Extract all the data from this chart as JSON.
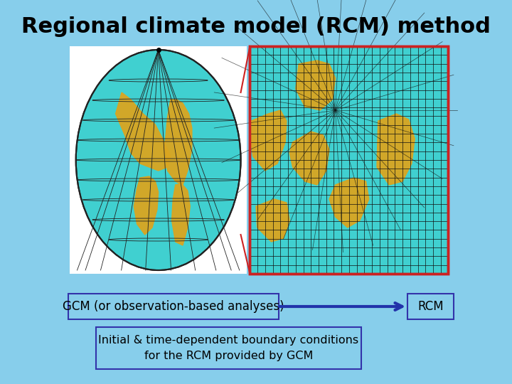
{
  "background_color": "#87CEEB",
  "title": "Regional climate model (RCM) method",
  "title_fontsize": 22,
  "title_fontweight": "bold",
  "title_color": "#000000",
  "gcm_label": "GCM (or observation-based analyses)",
  "rcm_label": "RCM",
  "description_line1": "Initial & time-dependent boundary conditions",
  "description_line2": "for the RCM provided by GCM",
  "box_edge_color": "#3333AA",
  "box_facecolor": "#87CEEB",
  "arrow_color": "#2233AA",
  "globe_ocean_color": "#40D0D0",
  "land_color": "#DAA520",
  "grid_border_color": "#CC2222",
  "zoom_line_color": "#CC2222"
}
